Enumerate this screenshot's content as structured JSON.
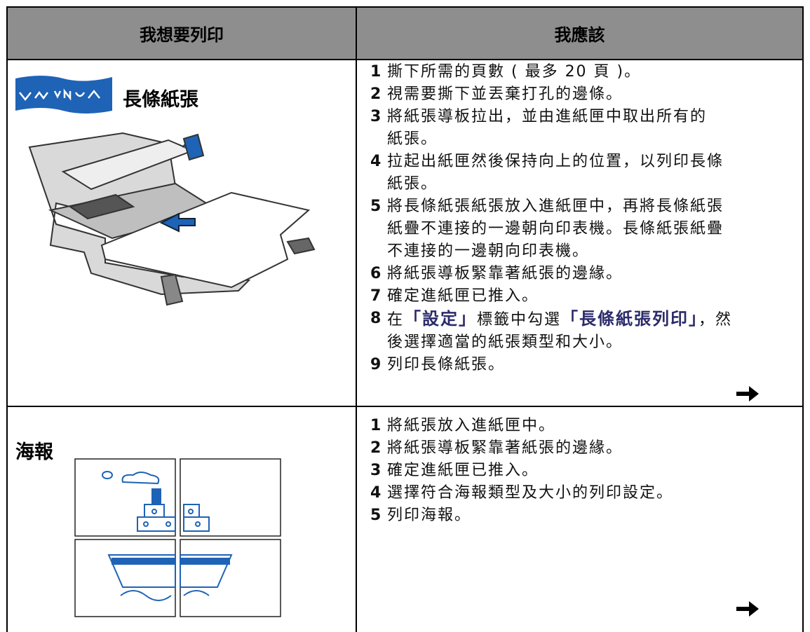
{
  "table": {
    "header": [
      "我想要列印",
      "我應該"
    ],
    "rows": [
      {
        "title": "長條紙張",
        "steps": [
          {
            "num": "1",
            "lines": [
              "撕下所需的頁數 ( 最多 20 頁 )。"
            ]
          },
          {
            "num": "2",
            "lines": [
              "視需要撕下並丟棄打孔的邊條。"
            ]
          },
          {
            "num": "3",
            "lines": [
              "將紙張導板拉出，並由進紙匣中取出所有的",
              "紙張。"
            ]
          },
          {
            "num": "4",
            "lines": [
              "拉起出紙匣然後保持向上的位置，以列印長條",
              "紙張。"
            ]
          },
          {
            "num": "5",
            "lines": [
              "將長條紙張紙張放入進紙匣中，再將長條紙張",
              "紙疊不連接的一邊朝向印表機。長條紙張紙疊",
              "不連接的一邊朝向印表機。"
            ]
          },
          {
            "num": "6",
            "lines": [
              "將紙張導板緊靠著紙張的邊緣。"
            ]
          },
          {
            "num": "7",
            "lines": [
              "確定進紙匣已推入。"
            ]
          },
          {
            "num": "8",
            "lines": [
              [
                {
                  "text": "在"
                },
                {
                  "text": "「設定」",
                  "emphasis": true
                },
                {
                  "text": "標籤中勾選"
                },
                {
                  "text": "「長條紙張列印」",
                  "emphasis": true
                },
                {
                  "text": "，然"
                }
              ],
              "後選擇適當的紙張類型和大小。"
            ]
          },
          {
            "num": "9",
            "lines": [
              "列印長條紙張。"
            ]
          }
        ]
      },
      {
        "title": "海報",
        "steps": [
          {
            "num": "1",
            "lines": [
              "將紙張放入進紙匣中。"
            ]
          },
          {
            "num": "2",
            "lines": [
              "將紙張導板緊靠著紙張的邊緣。"
            ]
          },
          {
            "num": "3",
            "lines": [
              "確定進紙匣已推入。"
            ]
          },
          {
            "num": "4",
            "lines": [
              "選擇符合海報類型及大小的列印設定。"
            ]
          },
          {
            "num": "5",
            "lines": [
              "列印海報。"
            ]
          }
        ]
      }
    ]
  }
}
